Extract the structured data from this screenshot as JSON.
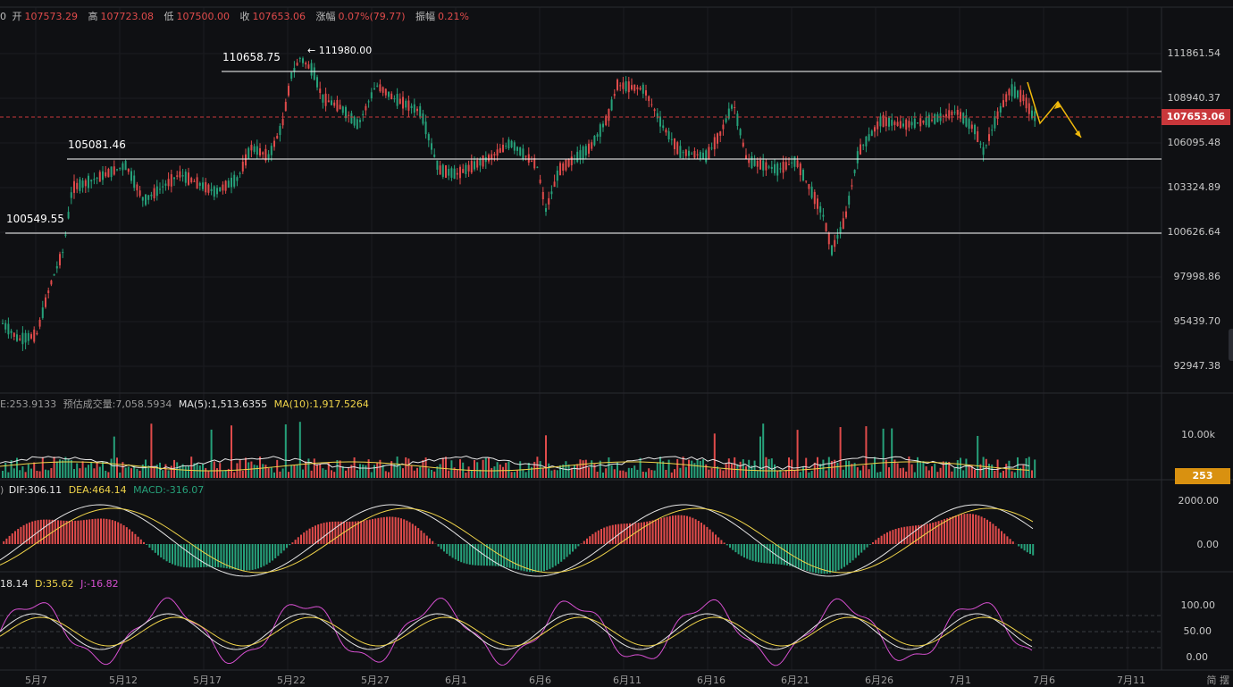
{
  "header": {
    "prefix": "0",
    "open_label": "开",
    "open": "107573.29",
    "high_label": "高",
    "high": "107723.08",
    "low_label": "低",
    "low": "107500.00",
    "close_label": "收",
    "close": "107653.06",
    "change_label": "涨幅",
    "change": "0.07%(79.77)",
    "amplitude_label": "振幅",
    "amplitude": "0.21%"
  },
  "main_panel": {
    "annotations": {
      "high_marker": "← 111980.00",
      "level_a": "110658.75",
      "level_b": "105081.46",
      "level_c": "100549.55"
    },
    "y_axis_labels": [
      "111861.54",
      "108940.37",
      "106095.48",
      "103324.89",
      "100626.64",
      "97998.86",
      "95439.70",
      "92947.38"
    ],
    "current_price": "107653.06",
    "colors": {
      "up": "#e04b4b",
      "down": "#26a17a",
      "current_price_bg": "#c9373b",
      "arrow": "#f0b90b",
      "level_line": "#ffffff"
    }
  },
  "volume_panel": {
    "prefix": "E:253.9133",
    "estimated_label": "预估成交量:7,058.5934",
    "ma5_label": "MA(5):1,513.6355",
    "ma10_label": "MA(10):1,917.5264",
    "y_axis_label": "10.00k",
    "current_volume": "253",
    "colors": {
      "ma5": "#e6e6e6",
      "ma10": "#f0d44a",
      "volume_tag_bg": "#d99110"
    }
  },
  "macd_panel": {
    "prefix": ")",
    "dif_label": "DIF:306.11",
    "dea_label": "DEA:464.14",
    "macd_label": "MACD:-316.07",
    "y_axis_labels": [
      "2000.00",
      "0.00"
    ],
    "colors": {
      "dif": "#e6e6e6",
      "dea": "#f0d44a",
      "macd": "#26a17a"
    }
  },
  "kdj_panel": {
    "k_label": "18.14",
    "d_label": "D:35.62",
    "j_label": "J:-16.82",
    "y_axis_labels": [
      "100.00",
      "50.00",
      "0.00"
    ],
    "colors": {
      "k": "#e6e6e6",
      "d": "#f0d44a",
      "j": "#d64fd0"
    }
  },
  "x_axis": {
    "labels": [
      "5月7",
      "5月12",
      "5月17",
      "5月22",
      "5月27",
      "6月1",
      "6月6",
      "6月11",
      "6月16",
      "6月21",
      "6月26",
      "7月1",
      "7月6",
      "7月11"
    ],
    "tail_label": "简 摆"
  }
}
